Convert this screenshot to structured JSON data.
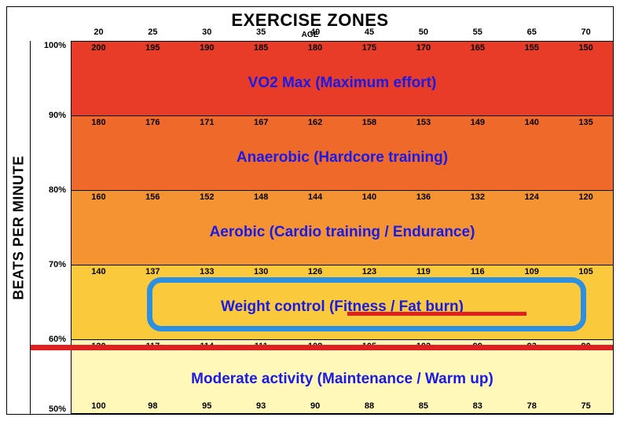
{
  "title": "EXERCISE ZONES",
  "age_label": "AGE",
  "bpm_label": "BEATS PER MINUTE",
  "ages": [
    20,
    25,
    30,
    35,
    40,
    45,
    50,
    55,
    65,
    70
  ],
  "percent_axis": {
    "min": 50,
    "max": 100,
    "ticks": [
      100,
      90,
      80,
      70,
      60,
      50
    ]
  },
  "zones": [
    {
      "name": "VO2 Max (Maximum effort)",
      "from_pct": 90,
      "to_pct": 100,
      "color": "#e83c28",
      "top_bpm": [
        200,
        195,
        190,
        185,
        180,
        175,
        170,
        165,
        155,
        150
      ]
    },
    {
      "name": "Anaerobic (Hardcore training)",
      "from_pct": 80,
      "to_pct": 90,
      "color": "#ef6a2a",
      "top_bpm": [
        180,
        176,
        171,
        167,
        162,
        158,
        153,
        149,
        140,
        135
      ]
    },
    {
      "name": "Aerobic (Cardio training / Endurance)",
      "from_pct": 70,
      "to_pct": 80,
      "color": "#f59333",
      "top_bpm": [
        160,
        156,
        152,
        148,
        144,
        140,
        136,
        132,
        124,
        120
      ]
    },
    {
      "name": "Weight control (Fitness / Fat burn)",
      "from_pct": 60,
      "to_pct": 70,
      "color": "#fbc93c",
      "top_bpm": [
        140,
        137,
        133,
        130,
        126,
        123,
        119,
        116,
        109,
        105
      ]
    },
    {
      "name": "Moderate activity (Maintenance / Warm up)",
      "from_pct": 50,
      "to_pct": 60,
      "color": "#fff8b8",
      "top_bpm": [
        120,
        117,
        114,
        111,
        108,
        105,
        102,
        99,
        93,
        90
      ],
      "bottom_bpm": [
        100,
        98,
        95,
        93,
        90,
        88,
        85,
        83,
        78,
        75
      ]
    }
  ],
  "highlight": {
    "zone_index": 3,
    "box_border_color": "#2d8fe0",
    "box_border_width": 7,
    "underline_color": "#e02020",
    "red_line_color": "#e02020",
    "red_line_pct": 59
  },
  "style": {
    "text_color": "#000000",
    "zone_label_color": "#1a1ae6",
    "zone_label_fontsize": 19,
    "title_fontsize": 22,
    "bpm_fontsize": 11,
    "border_color": "#000000",
    "background": "#ffffff"
  }
}
